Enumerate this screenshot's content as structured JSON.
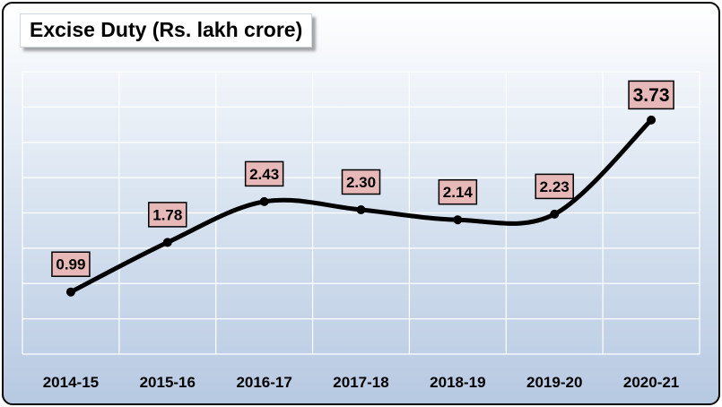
{
  "chart_data": {
    "type": "line",
    "title": "Excise Duty (Rs. lakh crore)",
    "categories": [
      "2014-15",
      "2015-16",
      "2016-17",
      "2017-18",
      "2018-19",
      "2019-20",
      "2020-21"
    ],
    "values": [
      0.99,
      1.78,
      2.43,
      2.3,
      2.14,
      2.23,
      3.73
    ],
    "data_labels": [
      "0.99",
      "1.78",
      "2.43",
      "2.30",
      "2.14",
      "2.23",
      "3.73"
    ],
    "ylim": [
      0,
      4.5
    ],
    "grid": true,
    "legend": "none",
    "smooth": true,
    "colors": {
      "line": "#000000",
      "label_fill": "#e6b9b8",
      "label_border": "#000000",
      "grid": "#ffffff"
    }
  }
}
